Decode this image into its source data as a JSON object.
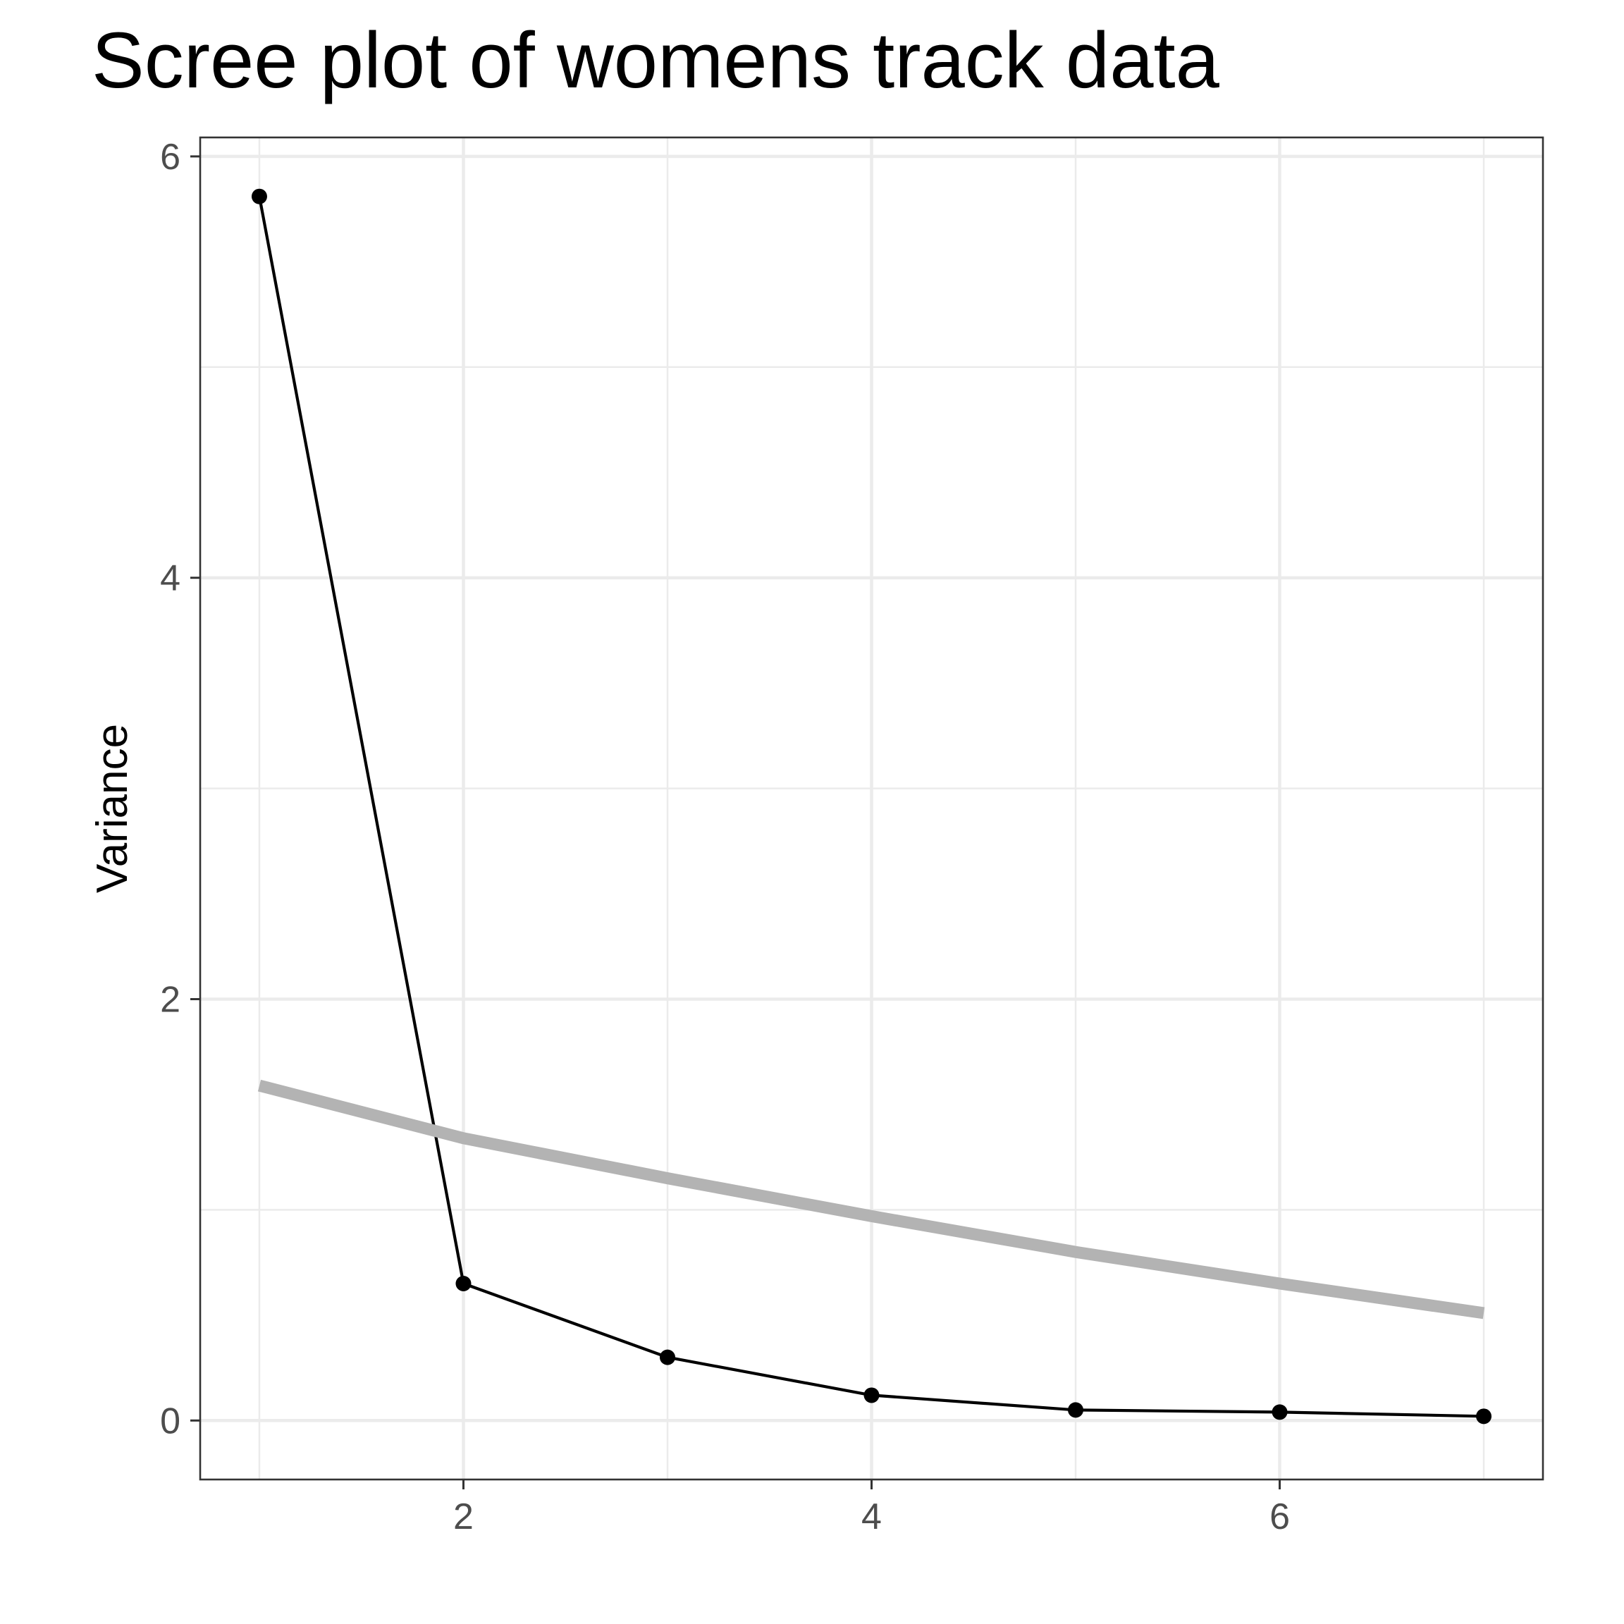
{
  "chart_data": {
    "type": "line",
    "title": "Scree plot of womens track data",
    "xlabel": "",
    "ylabel": "Variance",
    "xlim": [
      0.71,
      7.29
    ],
    "ylim": [
      -0.28,
      6.09
    ],
    "x_ticks": [
      2,
      4,
      6
    ],
    "y_ticks": [
      0,
      2,
      4,
      6
    ],
    "x_minor_grid": [
      1,
      3,
      5,
      7
    ],
    "y_minor_grid": [
      1,
      3,
      5
    ],
    "grid": true,
    "legend": "none",
    "series": [
      {
        "style": "line-with-points",
        "color": "#000000",
        "x": [
          1,
          2,
          3,
          4,
          5,
          6,
          7
        ],
        "y": [
          5.81,
          0.65,
          0.3,
          0.12,
          0.05,
          0.04,
          0.02
        ]
      },
      {
        "style": "thick-line",
        "color": "#b3b3b3",
        "x": [
          1,
          2,
          3,
          4,
          5,
          6,
          7
        ],
        "y": [
          1.59,
          1.34,
          1.15,
          0.97,
          0.8,
          0.65,
          0.51
        ]
      }
    ]
  }
}
